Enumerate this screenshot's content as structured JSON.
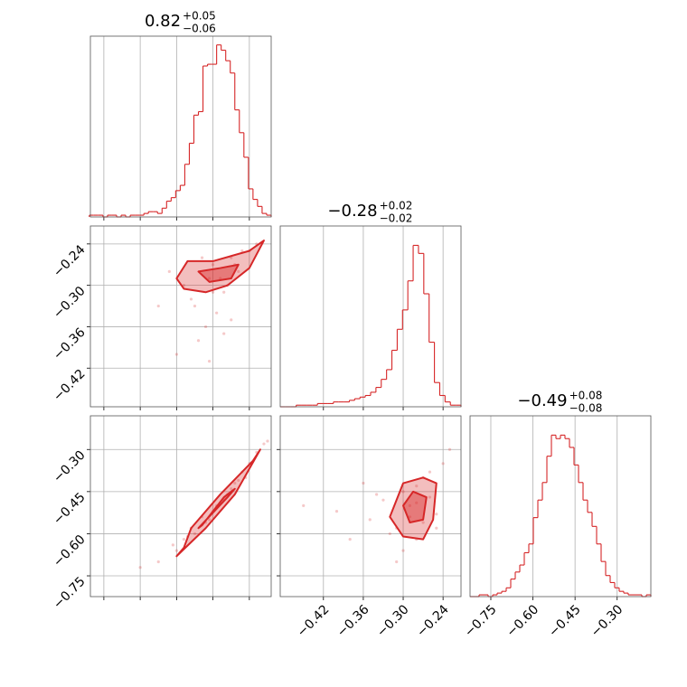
{
  "chart_data": [
    {
      "type": "histogram",
      "color": "#d62728",
      "title": "0.82",
      "title_upper": "+0.05",
      "title_lower": "−0.06",
      "bins": [
        0.46,
        0.4725,
        0.485,
        0.4975,
        0.51,
        0.5225,
        0.535,
        0.5475,
        0.56,
        0.5725,
        0.585,
        0.5975,
        0.61,
        0.6225,
        0.635,
        0.6475,
        0.66,
        0.6725,
        0.685,
        0.6975,
        0.71,
        0.7225,
        0.735,
        0.7475,
        0.76,
        0.7725,
        0.785,
        0.7975,
        0.81,
        0.8225,
        0.835,
        0.8475,
        0.86,
        0.8725,
        0.885,
        0.8975,
        0.91,
        0.9225,
        0.935,
        0.9475,
        0.96
      ],
      "values": [
        1,
        1,
        1,
        0,
        1,
        1,
        0,
        1,
        0,
        1,
        1,
        1,
        2,
        3,
        3,
        2,
        5,
        9,
        11,
        15,
        18,
        30,
        42,
        58,
        60,
        86,
        87,
        87,
        98,
        95,
        89,
        82,
        61,
        48,
        34,
        16,
        10,
        6,
        2,
        1
      ],
      "xlim": [
        0.463,
        0.96
      ],
      "ylim": [
        0,
        103
      ],
      "xticks": [
        0.5,
        0.6,
        0.7,
        0.8,
        0.9
      ],
      "grid": true
    },
    {
      "type": "scatter",
      "color": "#d62728",
      "x": [
        0.72,
        0.75,
        0.78,
        0.8,
        0.82,
        0.83,
        0.85,
        0.87,
        0.88,
        0.76,
        0.79,
        0.81,
        0.84,
        0.86,
        0.74,
        0.9,
        0.68,
        0.83,
        0.77,
        0.8,
        0.65,
        0.92,
        0.85,
        0.7,
        0.79
      ],
      "y": [
        -0.3,
        -0.33,
        -0.36,
        -0.27,
        -0.29,
        -0.31,
        -0.26,
        -0.28,
        -0.25,
        -0.38,
        -0.41,
        -0.34,
        -0.3,
        -0.27,
        -0.32,
        -0.25,
        -0.28,
        -0.37,
        -0.26,
        -0.31,
        -0.33,
        -0.24,
        -0.35,
        -0.4,
        -0.29
      ],
      "contours": [
        {
          "x": [
            0.7,
            0.73,
            0.8,
            0.9,
            0.94,
            0.9,
            0.84,
            0.78,
            0.72
          ],
          "y": [
            -0.29,
            -0.265,
            -0.265,
            -0.25,
            -0.235,
            -0.275,
            -0.3,
            -0.31,
            -0.305
          ]
        },
        {
          "x": [
            0.76,
            0.82,
            0.87,
            0.85,
            0.79
          ],
          "y": [
            -0.28,
            -0.275,
            -0.27,
            -0.29,
            -0.295
          ]
        }
      ],
      "xlim": [
        0.463,
        0.96
      ],
      "ylim": [
        -0.476,
        -0.214
      ],
      "xticks": [
        0.5,
        0.6,
        0.7,
        0.8,
        0.9
      ],
      "yticks": [
        {
          "value": -0.24,
          "label": "−0.24"
        },
        {
          "value": -0.3,
          "label": "−0.30"
        },
        {
          "value": -0.36,
          "label": "−0.36"
        },
        {
          "value": -0.42,
          "label": "−0.42"
        }
      ],
      "grid": true
    },
    {
      "type": "histogram",
      "color": "#d62728",
      "title": "−0.28",
      "title_upper": "+0.02",
      "title_lower": "−0.02",
      "bins": [
        -0.485,
        -0.477,
        -0.469,
        -0.461,
        -0.453,
        -0.445,
        -0.437,
        -0.429,
        -0.421,
        -0.413,
        -0.405,
        -0.397,
        -0.389,
        -0.381,
        -0.373,
        -0.365,
        -0.357,
        -0.349,
        -0.341,
        -0.333,
        -0.325,
        -0.317,
        -0.309,
        -0.301,
        -0.293,
        -0.285,
        -0.277,
        -0.269,
        -0.261,
        -0.253,
        -0.245,
        -0.237,
        -0.229,
        -0.221,
        -0.213
      ],
      "values": [
        0,
        0,
        0,
        1,
        1,
        1,
        1,
        2,
        2,
        2,
        3,
        3,
        3,
        4,
        5,
        6,
        7,
        9,
        12,
        17,
        23,
        35,
        48,
        60,
        78,
        100,
        95,
        70,
        40,
        15,
        7,
        3,
        1,
        1
      ],
      "xlim": [
        -0.485,
        -0.213
      ],
      "ylim": [
        0,
        112
      ],
      "xticks": [
        -0.42,
        -0.36,
        -0.3,
        -0.24
      ],
      "grid": true
    },
    {
      "type": "scatter",
      "color": "#d62728",
      "x": [
        0.65,
        0.7,
        0.72,
        0.75,
        0.78,
        0.8,
        0.82,
        0.84,
        0.86,
        0.88,
        0.9,
        0.92,
        0.94,
        0.77,
        0.81,
        0.85,
        0.73,
        0.69,
        0.89,
        0.83,
        0.6,
        0.95,
        0.79,
        0.87,
        0.74
      ],
      "y": [
        -0.7,
        -0.66,
        -0.62,
        -0.6,
        -0.56,
        -0.52,
        -0.49,
        -0.46,
        -0.42,
        -0.38,
        -0.35,
        -0.31,
        -0.28,
        -0.54,
        -0.5,
        -0.44,
        -0.61,
        -0.64,
        -0.4,
        -0.48,
        -0.72,
        -0.27,
        -0.55,
        -0.41,
        -0.58
      ],
      "contours": [
        {
          "x": [
            0.7,
            0.78,
            0.86,
            0.93,
            0.91,
            0.82,
            0.74,
            0.72
          ],
          "y": [
            -0.68,
            -0.58,
            -0.46,
            -0.3,
            -0.34,
            -0.46,
            -0.58,
            -0.65
          ]
        },
        {
          "x": [
            0.76,
            0.84,
            0.86,
            0.83,
            0.77
          ],
          "y": [
            -0.58,
            -0.47,
            -0.44,
            -0.47,
            -0.57
          ]
        }
      ],
      "xlim": [
        0.463,
        0.96
      ],
      "ylim": [
        -0.824,
        -0.18
      ],
      "xticks": [
        0.5,
        0.6,
        0.7,
        0.8,
        0.9
      ],
      "yticks": [
        {
          "value": -0.3,
          "label": "−0.30"
        },
        {
          "value": -0.45,
          "label": "−0.45"
        },
        {
          "value": -0.6,
          "label": "−0.60"
        },
        {
          "value": -0.75,
          "label": "−0.75"
        }
      ],
      "grid": true
    },
    {
      "type": "scatter",
      "color": "#d62728",
      "x": [
        -0.4,
        -0.35,
        -0.33,
        -0.31,
        -0.3,
        -0.29,
        -0.28,
        -0.27,
        -0.26,
        -0.25,
        -0.24,
        -0.3,
        -0.28,
        -0.32,
        -0.27,
        -0.45,
        -0.38,
        -0.26,
        -0.29,
        -0.23,
        -0.34,
        -0.31,
        -0.28,
        -0.25,
        -0.36
      ],
      "y": [
        -0.52,
        -0.55,
        -0.48,
        -0.58,
        -0.45,
        -0.5,
        -0.62,
        -0.4,
        -0.47,
        -0.53,
        -0.35,
        -0.66,
        -0.43,
        -0.6,
        -0.56,
        -0.5,
        -0.62,
        -0.38,
        -0.54,
        -0.3,
        -0.46,
        -0.7,
        -0.49,
        -0.58,
        -0.42
      ],
      "contours": [
        {
          "x": [
            -0.32,
            -0.3,
            -0.27,
            -0.25,
            -0.255,
            -0.27,
            -0.3
          ],
          "y": [
            -0.54,
            -0.42,
            -0.4,
            -0.42,
            -0.55,
            -0.62,
            -0.61
          ]
        },
        {
          "x": [
            -0.3,
            -0.285,
            -0.265,
            -0.27,
            -0.29
          ],
          "y": [
            -0.5,
            -0.45,
            -0.47,
            -0.55,
            -0.56
          ]
        }
      ],
      "xlim": [
        -0.485,
        -0.213
      ],
      "ylim": [
        -0.824,
        -0.18
      ],
      "xticks": [
        {
          "value": -0.42,
          "label": "−0.42"
        },
        {
          "value": -0.36,
          "label": "−0.36"
        },
        {
          "value": -0.3,
          "label": "−0.30"
        },
        {
          "value": -0.24,
          "label": "−0.24"
        }
      ],
      "yticks": [
        -0.3,
        -0.45,
        -0.6,
        -0.75
      ],
      "grid": true
    },
    {
      "type": "histogram",
      "color": "#d62728",
      "title": "−0.49",
      "title_upper": "+0.08",
      "title_lower": "−0.08",
      "bins": [
        -0.824,
        -0.8079,
        -0.7918,
        -0.7757,
        -0.7596,
        -0.7435,
        -0.7274,
        -0.7113,
        -0.6952,
        -0.6791,
        -0.663,
        -0.6469,
        -0.6308,
        -0.6147,
        -0.5986,
        -0.5825,
        -0.5664,
        -0.5503,
        -0.5342,
        -0.5181,
        -0.502,
        -0.4859,
        -0.4698,
        -0.4537,
        -0.4376,
        -0.4215,
        -0.4054,
        -0.3893,
        -0.3732,
        -0.3571,
        -0.341,
        -0.3249,
        -0.3088,
        -0.2927,
        -0.2766,
        -0.2605,
        -0.2444,
        -0.2283,
        -0.2122,
        -0.1961,
        -0.18
      ],
      "values": [
        0,
        0,
        1,
        1,
        0,
        1,
        2,
        3,
        5,
        10,
        14,
        18,
        25,
        30,
        45,
        55,
        65,
        80,
        92,
        90,
        92,
        90,
        85,
        75,
        65,
        55,
        48,
        40,
        30,
        20,
        12,
        8,
        5,
        3,
        2,
        1,
        1,
        1,
        0,
        1
      ],
      "xlim": [
        -0.824,
        -0.18
      ],
      "ylim": [
        0,
        103
      ],
      "xticks": [
        {
          "value": -0.75,
          "label": "−0.75"
        },
        {
          "value": -0.6,
          "label": "−0.60"
        },
        {
          "value": -0.45,
          "label": "−0.45"
        },
        {
          "value": -0.3,
          "label": "−0.30"
        }
      ],
      "grid": true
    }
  ]
}
